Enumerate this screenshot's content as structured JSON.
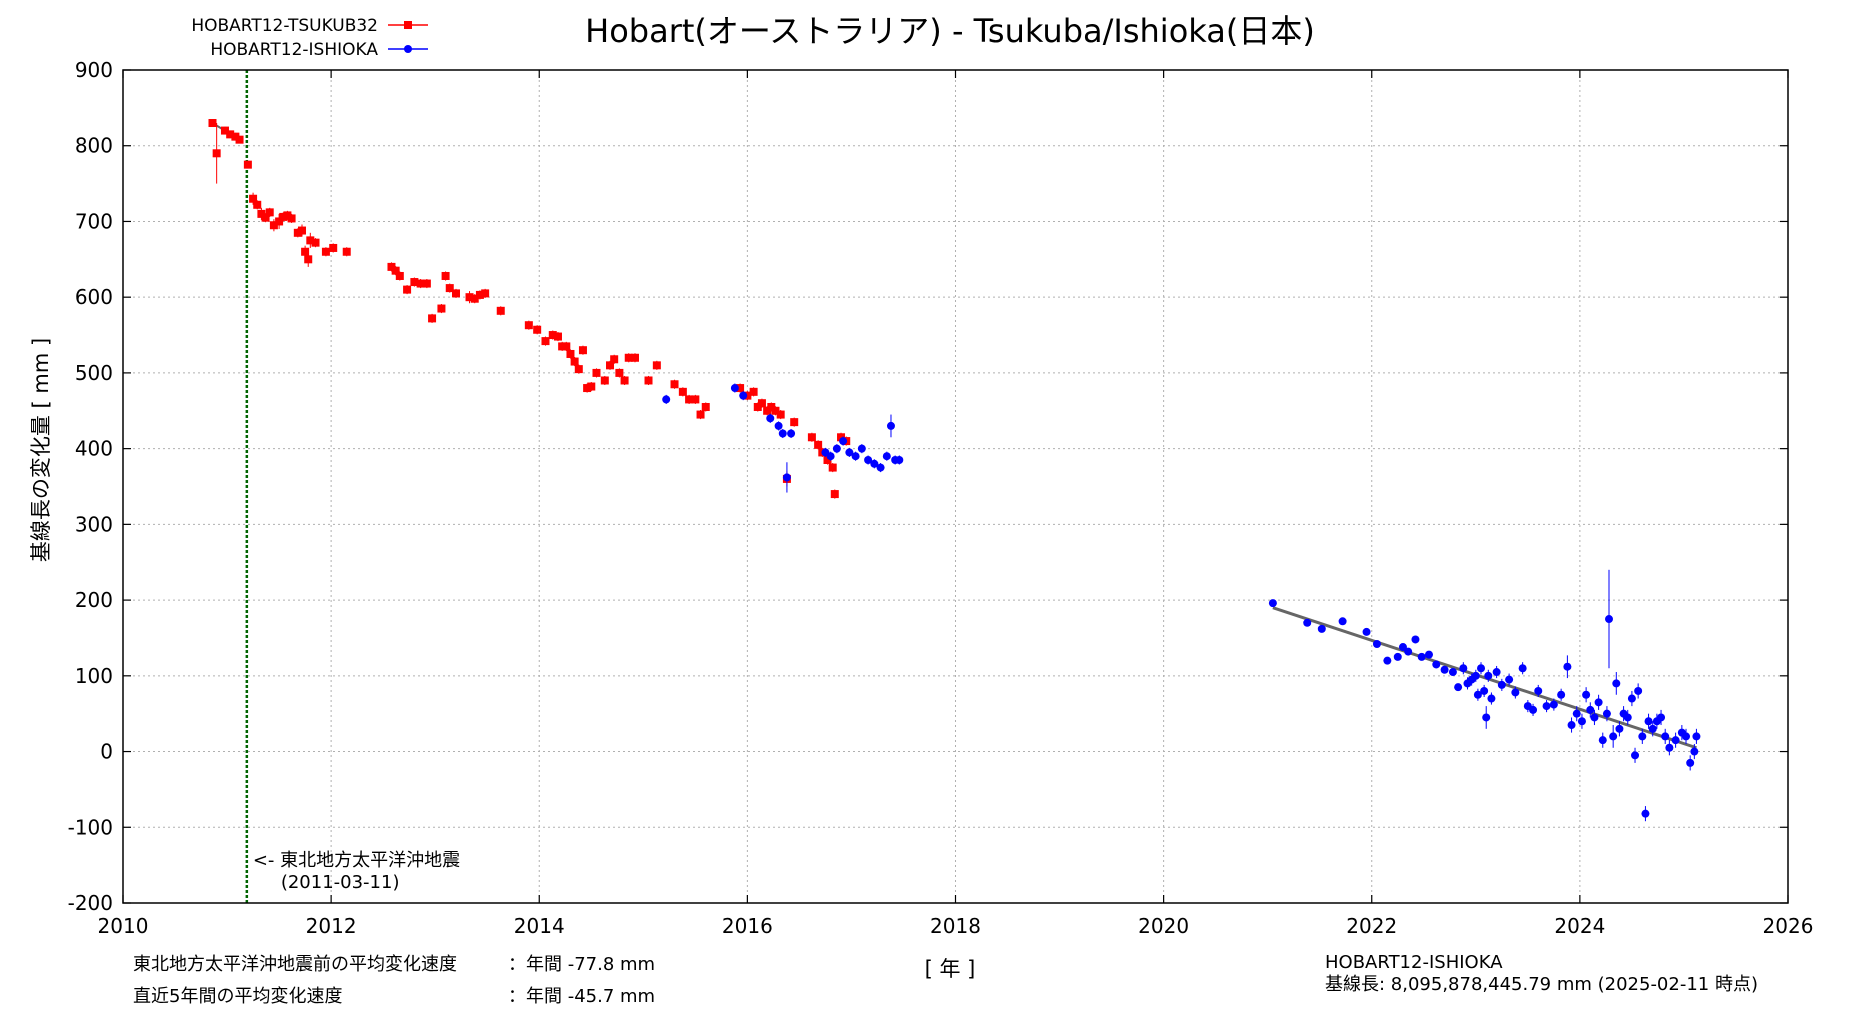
{
  "colors": {
    "tsukuba": "#ff0000",
    "ishioka": "#0000ff",
    "quake_line": "#006400",
    "trend": "#666666",
    "grid": "#b0b0b0"
  },
  "footer": {
    "rate_before_label": "東北地方太平洋沖地震前の平均変化速度",
    "rate_before_value": "：年間 -77.8 mm",
    "rate_recent_label": "直近5年間の平均変化速度",
    "rate_recent_value": "：年間 -45.7 mm",
    "baseline_name": "HOBART12-ISHIOKA",
    "baseline_length": "基線長: 8,095,878,445.79 mm (2025-02-11 時点)"
  },
  "chart_data": {
    "type": "scatter",
    "title": "Hobart(オーストラリア) - Tsukuba/Ishioka(日本)",
    "xlabel": "[ 年 ]",
    "ylabel": "基線長の変化量 [ mm ]",
    "xlim": [
      2010,
      2026
    ],
    "ylim": [
      -200,
      900
    ],
    "xticks": [
      2010,
      2012,
      2014,
      2016,
      2018,
      2020,
      2022,
      2024,
      2026
    ],
    "yticks": [
      -200,
      -100,
      0,
      100,
      200,
      300,
      400,
      500,
      600,
      700,
      800,
      900
    ],
    "grid": true,
    "legend_position": "top-left",
    "annotation": {
      "x": 2011.19,
      "text": "<- 東北地方太平洋沖地震",
      "date": "(2011-03-11)"
    },
    "series": [
      {
        "name": "HOBART12-TSUKUB32",
        "marker": "square",
        "points": [
          [
            2010.86,
            830,
            5
          ],
          [
            2010.9,
            790,
            40
          ],
          [
            2010.98,
            820,
            5
          ],
          [
            2011.03,
            815,
            5
          ],
          [
            2011.08,
            812,
            5
          ],
          [
            2011.12,
            808,
            5
          ],
          [
            2011.2,
            775,
            5
          ],
          [
            2011.25,
            730,
            8
          ],
          [
            2011.29,
            722,
            6
          ],
          [
            2011.33,
            710,
            8
          ],
          [
            2011.37,
            705,
            6
          ],
          [
            2011.41,
            712,
            6
          ],
          [
            2011.45,
            695,
            8
          ],
          [
            2011.5,
            700,
            10
          ],
          [
            2011.54,
            706,
            6
          ],
          [
            2011.58,
            708,
            6
          ],
          [
            2011.62,
            704,
            6
          ],
          [
            2011.68,
            685,
            6
          ],
          [
            2011.72,
            688,
            8
          ],
          [
            2011.75,
            660,
            8
          ],
          [
            2011.78,
            650,
            10
          ],
          [
            2011.8,
            675,
            10
          ],
          [
            2011.85,
            672,
            6
          ],
          [
            2011.95,
            660,
            6
          ],
          [
            2012.02,
            665,
            6
          ],
          [
            2012.15,
            660,
            6
          ],
          [
            2012.58,
            640,
            6
          ],
          [
            2012.62,
            635,
            6
          ],
          [
            2012.66,
            628,
            6
          ],
          [
            2012.73,
            610,
            6
          ],
          [
            2012.8,
            620,
            6
          ],
          [
            2012.86,
            618,
            6
          ],
          [
            2012.92,
            618,
            6
          ],
          [
            2012.97,
            572,
            6
          ],
          [
            2013.06,
            585,
            6
          ],
          [
            2013.1,
            628,
            6
          ],
          [
            2013.14,
            612,
            6
          ],
          [
            2013.2,
            605,
            6
          ],
          [
            2013.33,
            600,
            8
          ],
          [
            2013.38,
            598,
            6
          ],
          [
            2013.43,
            603,
            6
          ],
          [
            2013.48,
            605,
            6
          ],
          [
            2013.63,
            582,
            6
          ],
          [
            2013.9,
            563,
            6
          ],
          [
            2013.98,
            557,
            6
          ],
          [
            2014.06,
            542,
            6
          ],
          [
            2014.13,
            550,
            6
          ],
          [
            2014.18,
            548,
            6
          ],
          [
            2014.22,
            535,
            6
          ],
          [
            2014.26,
            535,
            6
          ],
          [
            2014.3,
            525,
            6
          ],
          [
            2014.34,
            515,
            6
          ],
          [
            2014.38,
            505,
            6
          ],
          [
            2014.42,
            530,
            6
          ],
          [
            2014.46,
            480,
            6
          ],
          [
            2014.5,
            482,
            6
          ],
          [
            2014.55,
            500,
            6
          ],
          [
            2014.63,
            490,
            6
          ],
          [
            2014.68,
            510,
            6
          ],
          [
            2014.72,
            518,
            6
          ],
          [
            2014.77,
            500,
            6
          ],
          [
            2014.82,
            490,
            6
          ],
          [
            2014.86,
            520,
            6
          ],
          [
            2014.92,
            520,
            6
          ],
          [
            2015.05,
            490,
            6
          ],
          [
            2015.13,
            510,
            6
          ],
          [
            2015.3,
            485,
            6
          ],
          [
            2015.38,
            475,
            6
          ],
          [
            2015.44,
            465,
            6
          ],
          [
            2015.5,
            465,
            6
          ],
          [
            2015.55,
            445,
            6
          ],
          [
            2015.6,
            455,
            6
          ],
          [
            2015.93,
            480,
            6
          ],
          [
            2016.0,
            470,
            6
          ],
          [
            2016.06,
            475,
            6
          ],
          [
            2016.1,
            455,
            6
          ],
          [
            2016.14,
            460,
            6
          ],
          [
            2016.19,
            450,
            6
          ],
          [
            2016.23,
            455,
            6
          ],
          [
            2016.27,
            450,
            6
          ],
          [
            2016.32,
            445,
            6
          ],
          [
            2016.38,
            360,
            10
          ],
          [
            2016.45,
            435,
            6
          ],
          [
            2016.62,
            415,
            6
          ],
          [
            2016.68,
            405,
            6
          ],
          [
            2016.72,
            395,
            6
          ],
          [
            2016.77,
            385,
            6
          ],
          [
            2016.82,
            375,
            6
          ],
          [
            2016.84,
            340,
            6
          ],
          [
            2016.9,
            415,
            6
          ],
          [
            2016.95,
            410,
            6
          ]
        ]
      },
      {
        "name": "HOBART12-ISHIOKA",
        "marker": "circle",
        "trend": [
          [
            2021.05,
            190
          ],
          [
            2025.12,
            5
          ]
        ],
        "points": [
          [
            2015.22,
            465,
            6
          ],
          [
            2015.88,
            480,
            6
          ],
          [
            2015.96,
            470,
            6
          ],
          [
            2016.22,
            440,
            6
          ],
          [
            2016.3,
            430,
            6
          ],
          [
            2016.34,
            420,
            6
          ],
          [
            2016.38,
            362,
            20
          ],
          [
            2016.42,
            420,
            6
          ],
          [
            2016.75,
            395,
            6
          ],
          [
            2016.8,
            390,
            6
          ],
          [
            2016.86,
            400,
            6
          ],
          [
            2016.92,
            410,
            6
          ],
          [
            2016.98,
            395,
            6
          ],
          [
            2017.04,
            390,
            6
          ],
          [
            2017.1,
            400,
            6
          ],
          [
            2017.16,
            385,
            6
          ],
          [
            2017.22,
            380,
            6
          ],
          [
            2017.28,
            375,
            6
          ],
          [
            2017.34,
            390,
            6
          ],
          [
            2017.38,
            430,
            15
          ],
          [
            2017.42,
            385,
            6
          ],
          [
            2017.46,
            385,
            6
          ],
          [
            2021.05,
            196,
            3
          ],
          [
            2021.38,
            170,
            3
          ],
          [
            2021.52,
            162,
            3
          ],
          [
            2021.72,
            172,
            3
          ],
          [
            2021.95,
            158,
            3
          ],
          [
            2022.05,
            142,
            3
          ],
          [
            2022.15,
            120,
            3
          ],
          [
            2022.25,
            125,
            3
          ],
          [
            2022.3,
            138,
            3
          ],
          [
            2022.35,
            132,
            3
          ],
          [
            2022.42,
            148,
            3
          ],
          [
            2022.48,
            125,
            3
          ],
          [
            2022.55,
            128,
            3
          ],
          [
            2022.62,
            115,
            3
          ],
          [
            2022.7,
            108,
            3
          ],
          [
            2022.78,
            105,
            3
          ],
          [
            2022.83,
            85,
            3
          ],
          [
            2022.88,
            110,
            8
          ],
          [
            2022.92,
            90,
            8
          ],
          [
            2022.96,
            95,
            8
          ],
          [
            2023.0,
            100,
            8
          ],
          [
            2023.02,
            75,
            8
          ],
          [
            2023.05,
            110,
            8
          ],
          [
            2023.08,
            80,
            8
          ],
          [
            2023.1,
            45,
            15
          ],
          [
            2023.12,
            100,
            8
          ],
          [
            2023.15,
            70,
            8
          ],
          [
            2023.2,
            105,
            8
          ],
          [
            2023.25,
            88,
            8
          ],
          [
            2023.32,
            95,
            8
          ],
          [
            2023.38,
            78,
            8
          ],
          [
            2023.45,
            110,
            8
          ],
          [
            2023.5,
            60,
            8
          ],
          [
            2023.55,
            55,
            8
          ],
          [
            2023.6,
            80,
            8
          ],
          [
            2023.68,
            60,
            8
          ],
          [
            2023.75,
            62,
            8
          ],
          [
            2023.82,
            75,
            8
          ],
          [
            2023.88,
            112,
            15
          ],
          [
            2023.92,
            35,
            10
          ],
          [
            2023.97,
            50,
            10
          ],
          [
            2024.02,
            40,
            10
          ],
          [
            2024.06,
            75,
            10
          ],
          [
            2024.1,
            55,
            10
          ],
          [
            2024.14,
            45,
            10
          ],
          [
            2024.18,
            65,
            10
          ],
          [
            2024.22,
            15,
            10
          ],
          [
            2024.26,
            50,
            10
          ],
          [
            2024.28,
            175,
            65
          ],
          [
            2024.32,
            20,
            15
          ],
          [
            2024.35,
            90,
            15
          ],
          [
            2024.38,
            30,
            10
          ],
          [
            2024.42,
            50,
            10
          ],
          [
            2024.46,
            45,
            10
          ],
          [
            2024.5,
            70,
            10
          ],
          [
            2024.53,
            -5,
            10
          ],
          [
            2024.56,
            80,
            10
          ],
          [
            2024.6,
            20,
            10
          ],
          [
            2024.63,
            -82,
            10
          ],
          [
            2024.66,
            40,
            10
          ],
          [
            2024.7,
            30,
            10
          ],
          [
            2024.74,
            40,
            10
          ],
          [
            2024.78,
            45,
            10
          ],
          [
            2024.82,
            20,
            10
          ],
          [
            2024.86,
            5,
            10
          ],
          [
            2024.92,
            15,
            10
          ],
          [
            2024.98,
            25,
            10
          ],
          [
            2025.02,
            20,
            10
          ],
          [
            2025.06,
            -15,
            10
          ],
          [
            2025.1,
            0,
            10
          ],
          [
            2025.12,
            20,
            10
          ]
        ]
      }
    ]
  }
}
